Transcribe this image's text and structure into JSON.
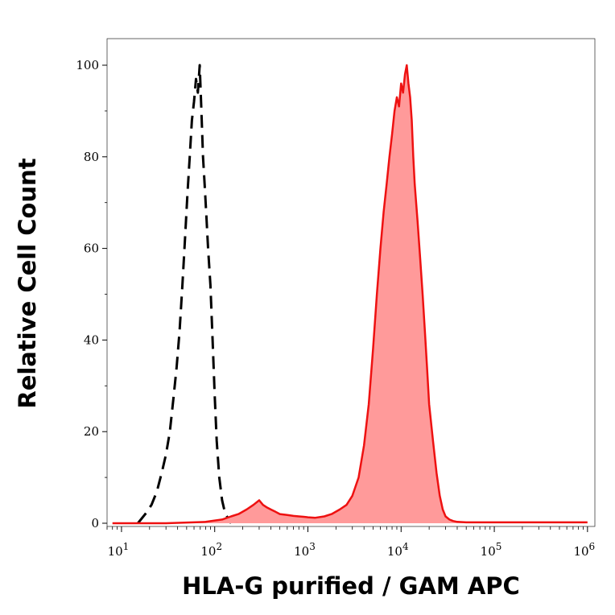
{
  "chart_data": {
    "type": "line",
    "xlabel": "HLA-G purified / GAM APC",
    "ylabel": "Relative Cell Count",
    "x_scale": "log",
    "xlim": [
      7,
      1200000
    ],
    "ylim": [
      -1,
      100
    ],
    "x_ticks": [
      {
        "value": 10,
        "base": "10",
        "exp": "1"
      },
      {
        "value": 100,
        "base": "10",
        "exp": "2"
      },
      {
        "value": 1000,
        "base": "10",
        "exp": "3"
      },
      {
        "value": 10000,
        "base": "10",
        "exp": "4"
      },
      {
        "value": 100000,
        "base": "10",
        "exp": "5"
      },
      {
        "value": 1000000,
        "base": "10",
        "exp": "6"
      }
    ],
    "y_ticks": [
      0,
      20,
      40,
      60,
      80,
      100
    ],
    "grid": false,
    "series": [
      {
        "style": "dashed",
        "color": "#000000",
        "fill": false,
        "x": [
          15,
          18,
          21,
          24,
          27,
          30,
          33,
          36,
          39,
          42,
          45,
          48,
          51,
          54,
          57,
          60,
          63,
          66,
          69,
          72,
          75,
          78,
          81,
          85,
          90,
          95,
          100,
          105,
          112,
          120,
          130,
          140,
          150
        ],
        "y": [
          0,
          2,
          4,
          7,
          11,
          15,
          20,
          27,
          34,
          42,
          52,
          62,
          72,
          80,
          88,
          92,
          97,
          94,
          100,
          90,
          80,
          74,
          68,
          60,
          52,
          40,
          28,
          18,
          10,
          5,
          2,
          1,
          0
        ]
      },
      {
        "style": "solid",
        "color": "#ee1111",
        "fill": true,
        "fill_color": "#ff9a9a",
        "x": [
          8,
          30,
          80,
          120,
          150,
          180,
          220,
          260,
          300,
          330,
          360,
          400,
          450,
          500,
          600,
          700,
          800,
          900,
          1000,
          1200,
          1500,
          1800,
          2200,
          2600,
          3000,
          3500,
          4000,
          4500,
          5000,
          5500,
          6000,
          6500,
          7000,
          7500,
          8000,
          8500,
          9000,
          9500,
          10000,
          10500,
          11000,
          11500,
          12000,
          12500,
          13000,
          13500,
          14000,
          15000,
          16000,
          17000,
          18000,
          19000,
          20000,
          22000,
          24000,
          26000,
          28000,
          30000,
          33000,
          36000,
          40000,
          50000,
          70000,
          100000,
          200000,
          500000,
          1000000
        ],
        "y": [
          0,
          0,
          0.3,
          0.8,
          1.5,
          2,
          3,
          4,
          5,
          4,
          3.5,
          3,
          2.5,
          2,
          1.8,
          1.6,
          1.5,
          1.4,
          1.3,
          1.2,
          1.5,
          2,
          3,
          4,
          6,
          10,
          17,
          26,
          38,
          50,
          60,
          68,
          74,
          80,
          85,
          90,
          93,
          91,
          96,
          94,
          98,
          100,
          96,
          93,
          88,
          80,
          74,
          66,
          58,
          50,
          42,
          34,
          26,
          18,
          11,
          6,
          3,
          1.5,
          0.8,
          0.5,
          0.3,
          0.2,
          0.2,
          0.2,
          0.2,
          0.2,
          0.2
        ]
      }
    ]
  }
}
